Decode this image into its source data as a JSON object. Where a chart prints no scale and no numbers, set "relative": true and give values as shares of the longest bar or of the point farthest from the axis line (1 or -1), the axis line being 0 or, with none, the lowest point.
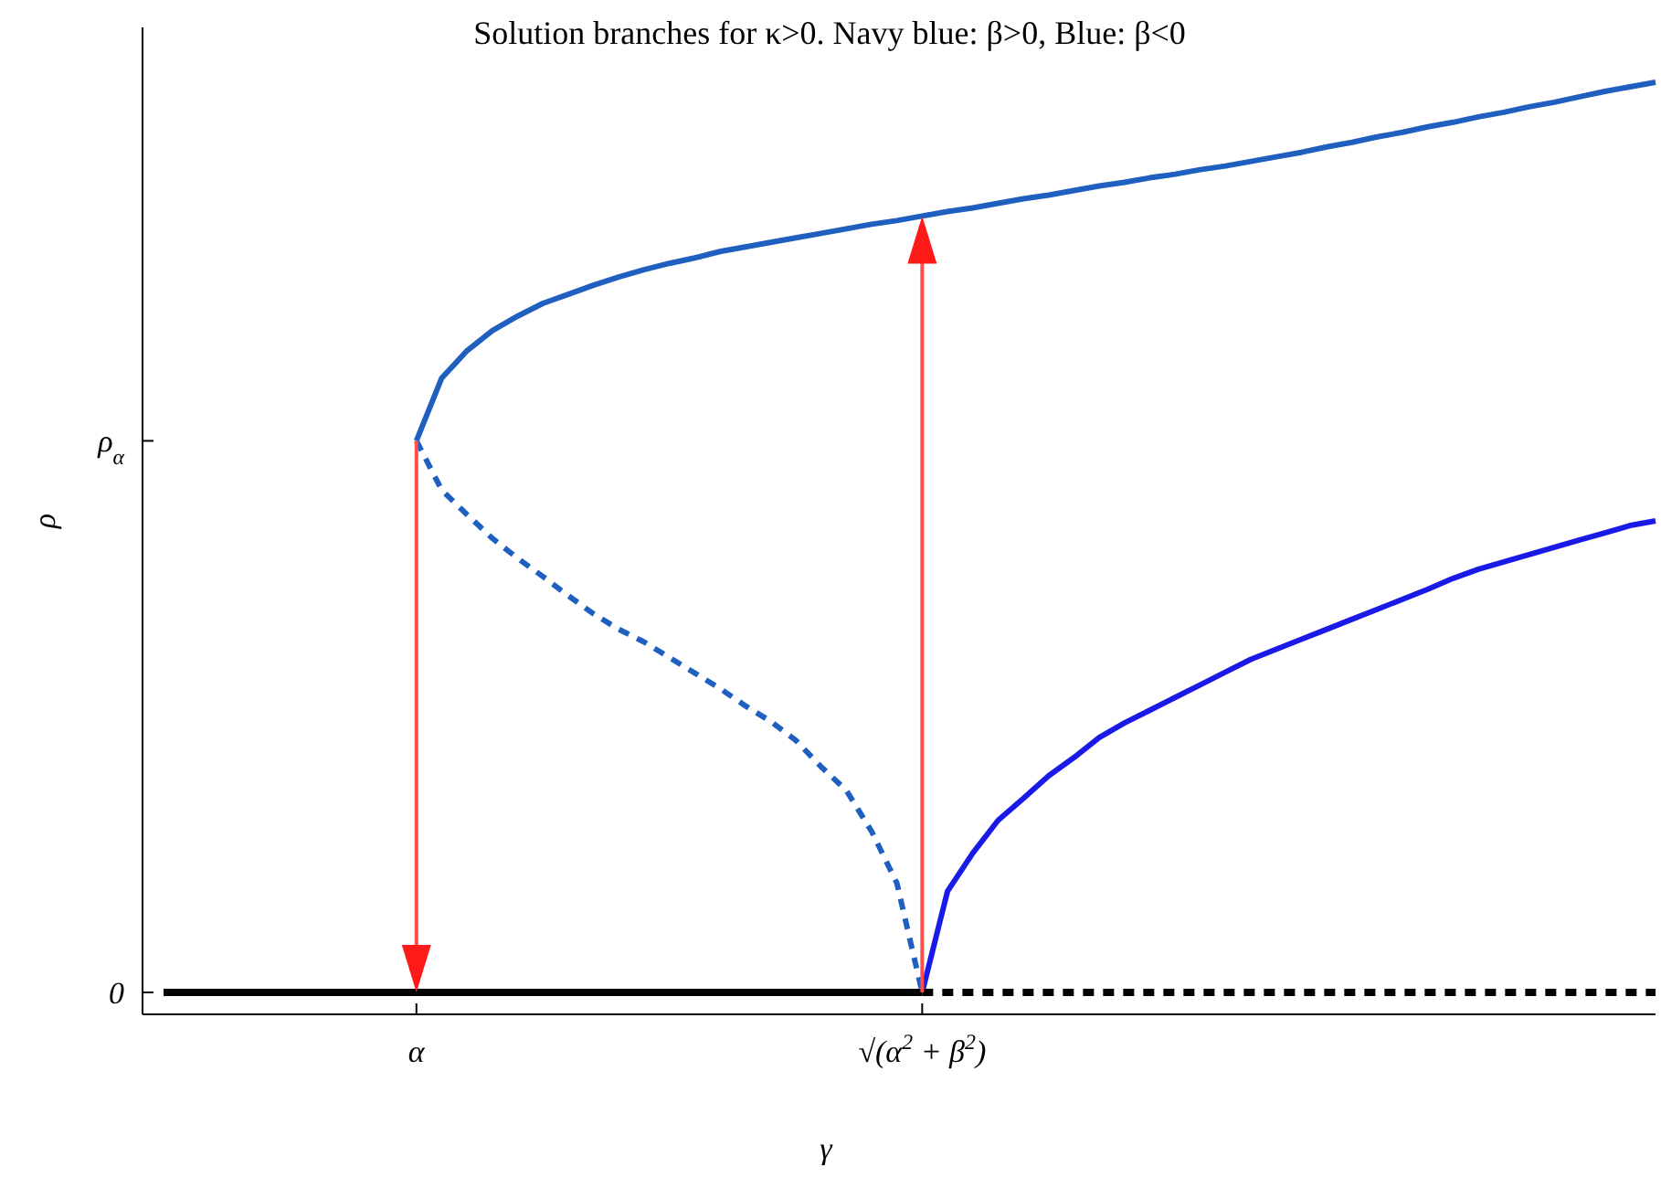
{
  "chart_data": {
    "type": "line",
    "title": "Solution branches for κ>0. Navy blue: β>0, Blue: β<0",
    "xlabel": "γ",
    "ylabel": "ρ",
    "relative": true,
    "categories": [
      null,
      null,
      null,
      null,
      null,
      null,
      null,
      null,
      null,
      null,
      "α",
      null,
      null,
      null,
      null,
      null,
      null,
      null,
      null,
      null,
      null,
      null,
      null,
      null,
      null,
      null,
      null,
      null,
      null,
      null,
      "√(α$^{2}$ + β$^{2}$)",
      null,
      null,
      null,
      null,
      null,
      null,
      null,
      null,
      null,
      null,
      null,
      null,
      null,
      null,
      null,
      null,
      null,
      null,
      null,
      null,
      null,
      null,
      null,
      null,
      null,
      null,
      null,
      null,
      null
    ],
    "annotations": [
      "0",
      "ρ$_{α}$"
    ],
    "series": [
      {
        "color": "#1f5fbf",
        "line_style": "solid",
        "values": [
          null,
          null,
          null,
          null,
          null,
          null,
          null,
          null,
          null,
          null,
          0.606,
          0.675,
          0.705,
          0.727,
          0.743,
          0.757,
          0.767,
          0.777,
          0.786,
          0.794,
          0.801,
          0.807,
          0.814,
          0.819,
          0.824,
          0.829,
          0.834,
          0.839,
          0.844,
          0.848,
          0.853,
          0.858,
          0.862,
          0.867,
          0.872,
          0.876,
          0.881,
          0.886,
          0.89,
          0.895,
          0.899,
          0.904,
          0.908,
          0.913,
          0.918,
          0.923,
          0.929,
          0.934,
          0.94,
          0.945,
          0.951,
          0.956,
          0.962,
          0.967,
          0.973,
          0.978,
          0.984,
          0.99,
          0.995,
          1
        ]
      },
      {
        "color": "#1f5fbf",
        "line_style": "dashed",
        "values": [
          null,
          null,
          null,
          null,
          null,
          null,
          null,
          null,
          null,
          null,
          0.606,
          0.552,
          0.525,
          0.499,
          0.477,
          0.457,
          0.436,
          0.416,
          0.399,
          0.385,
          0.368,
          0.351,
          0.334,
          0.315,
          0.298,
          0.277,
          0.248,
          0.222,
          0.177,
          0.12,
          0,
          null,
          null,
          null,
          null,
          null,
          null,
          null,
          null,
          null,
          null,
          null,
          null,
          null,
          null,
          null,
          null,
          null,
          null,
          null,
          null,
          null,
          null,
          null,
          null,
          null,
          null,
          null,
          null,
          null
        ]
      },
      {
        "color": "#1a1ae8",
        "line_style": "solid",
        "values": [
          null,
          null,
          null,
          null,
          null,
          null,
          null,
          null,
          null,
          null,
          null,
          null,
          null,
          null,
          null,
          null,
          null,
          null,
          null,
          null,
          null,
          null,
          null,
          null,
          null,
          null,
          null,
          null,
          null,
          null,
          0,
          0.111,
          0.153,
          0.189,
          0.213,
          0.238,
          0.258,
          0.28,
          0.296,
          0.31,
          0.324,
          0.338,
          0.352,
          0.366,
          0.377,
          0.388,
          0.399,
          0.41,
          0.421,
          0.432,
          0.443,
          0.455,
          0.465,
          0.473,
          0.481,
          0.489,
          0.497,
          0.505,
          0.513,
          0.518
        ]
      },
      {
        "color": "#000000",
        "line_style": "solid",
        "values": [
          0,
          0,
          0,
          0,
          0,
          0,
          0,
          0,
          0,
          0,
          0,
          0,
          0,
          0,
          0,
          0,
          0,
          0,
          0,
          0,
          0,
          0,
          0,
          0,
          0,
          0,
          0,
          0,
          0,
          0,
          0,
          null,
          null,
          null,
          null,
          null,
          null,
          null,
          null,
          null,
          null,
          null,
          null,
          null,
          null,
          null,
          null,
          null,
          null,
          null,
          null,
          null,
          null,
          null,
          null,
          null,
          null,
          null,
          null,
          null
        ]
      },
      {
        "color": "#000000",
        "line_style": "dashed",
        "values": [
          null,
          null,
          null,
          null,
          null,
          null,
          null,
          null,
          null,
          null,
          null,
          null,
          null,
          null,
          null,
          null,
          null,
          null,
          null,
          null,
          null,
          null,
          null,
          null,
          null,
          null,
          null,
          null,
          null,
          null,
          0,
          0,
          0,
          0,
          0,
          0,
          0,
          0,
          0,
          0,
          0,
          0,
          0,
          0,
          0,
          0,
          0,
          0,
          0,
          0,
          0,
          0,
          0,
          0,
          0,
          0,
          0,
          0,
          0,
          0
        ]
      }
    ]
  }
}
